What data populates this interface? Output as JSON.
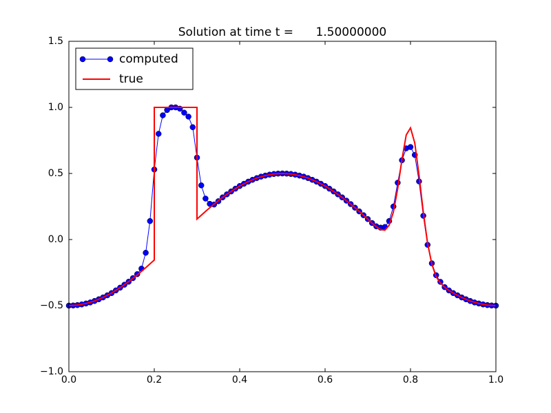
{
  "chart_data": {
    "type": "line",
    "title": "Solution at time t =      1.50000000",
    "xlim": [
      0,
      1
    ],
    "ylim": [
      -1,
      1.5
    ],
    "xticks": [
      {
        "value": 0,
        "label": "0.0"
      },
      {
        "value": 0.2,
        "label": "0.2"
      },
      {
        "value": 0.4,
        "label": "0.4"
      },
      {
        "value": 0.6,
        "label": "0.6"
      },
      {
        "value": 0.8,
        "label": "0.8"
      },
      {
        "value": 1,
        "label": "1.0"
      }
    ],
    "yticks": [
      {
        "value": -1,
        "label": "−1.0"
      },
      {
        "value": -0.5,
        "label": "−0.5"
      },
      {
        "value": 0,
        "label": "0.0"
      },
      {
        "value": 0.5,
        "label": "0.5"
      },
      {
        "value": 1,
        "label": "1.0"
      },
      {
        "value": 1.5,
        "label": "1.5"
      }
    ],
    "legend": "upper left",
    "series": [
      {
        "name": "computed",
        "color": "#0000ff",
        "marker": "o",
        "x": [
          0,
          0.01,
          0.02,
          0.03,
          0.04,
          0.05,
          0.06,
          0.07,
          0.08,
          0.09,
          0.1,
          0.11,
          0.12,
          0.13,
          0.14,
          0.15,
          0.16,
          0.17,
          0.18,
          0.19,
          0.2,
          0.21,
          0.22,
          0.23,
          0.24,
          0.25,
          0.26,
          0.27,
          0.28,
          0.29,
          0.3,
          0.31,
          0.32,
          0.33,
          0.34,
          0.35,
          0.36,
          0.37,
          0.38,
          0.39,
          0.4,
          0.41,
          0.42,
          0.43,
          0.44,
          0.45,
          0.46,
          0.47,
          0.48,
          0.49,
          0.5,
          0.51,
          0.52,
          0.53,
          0.54,
          0.55,
          0.56,
          0.57,
          0.58,
          0.59,
          0.6,
          0.61,
          0.62,
          0.63,
          0.64,
          0.65,
          0.66,
          0.67,
          0.68,
          0.69,
          0.7,
          0.71,
          0.72,
          0.73,
          0.74,
          0.75,
          0.76,
          0.77,
          0.78,
          0.79,
          0.8,
          0.81,
          0.82,
          0.83,
          0.84,
          0.85,
          0.86,
          0.87,
          0.88,
          0.89,
          0.9,
          0.91,
          0.92,
          0.93,
          0.94,
          0.95,
          0.96,
          0.97,
          0.98,
          0.99,
          1
        ],
        "values": [
          -0.5,
          -0.499,
          -0.496,
          -0.491,
          -0.484,
          -0.476,
          -0.465,
          -0.452,
          -0.438,
          -0.422,
          -0.405,
          -0.385,
          -0.364,
          -0.342,
          -0.319,
          -0.292,
          -0.262,
          -0.22,
          -0.1,
          0.14,
          0.53,
          0.8,
          0.94,
          0.98,
          1.0,
          1.0,
          0.99,
          0.96,
          0.93,
          0.85,
          0.62,
          0.41,
          0.31,
          0.27,
          0.265,
          0.29,
          0.319,
          0.342,
          0.364,
          0.385,
          0.405,
          0.422,
          0.438,
          0.452,
          0.465,
          0.476,
          0.484,
          0.491,
          0.496,
          0.499,
          0.5,
          0.499,
          0.496,
          0.491,
          0.484,
          0.476,
          0.465,
          0.452,
          0.438,
          0.422,
          0.405,
          0.385,
          0.364,
          0.342,
          0.319,
          0.294,
          0.268,
          0.241,
          0.213,
          0.184,
          0.155,
          0.125,
          0.1,
          0.09,
          0.095,
          0.14,
          0.25,
          0.43,
          0.6,
          0.69,
          0.7,
          0.64,
          0.44,
          0.18,
          -0.04,
          -0.18,
          -0.27,
          -0.32,
          -0.36,
          -0.385,
          -0.405,
          -0.422,
          -0.438,
          -0.452,
          -0.465,
          -0.476,
          -0.484,
          -0.491,
          -0.496,
          -0.499,
          -0.5
        ]
      },
      {
        "name": "true",
        "color": "#ff0000",
        "x": [
          0,
          0.02,
          0.04,
          0.06,
          0.08,
          0.1,
          0.12,
          0.14,
          0.16,
          0.18,
          0.2,
          0.2,
          0.3,
          0.3,
          0.32,
          0.34,
          0.36,
          0.38,
          0.4,
          0.42,
          0.44,
          0.46,
          0.48,
          0.5,
          0.52,
          0.54,
          0.56,
          0.58,
          0.6,
          0.62,
          0.64,
          0.66,
          0.68,
          0.7,
          0.71,
          0.72,
          0.73,
          0.74,
          0.75,
          0.76,
          0.77,
          0.78,
          0.79,
          0.8,
          0.81,
          0.82,
          0.83,
          0.84,
          0.85,
          0.86,
          0.87,
          0.88,
          0.89,
          0.9,
          0.92,
          0.94,
          0.96,
          0.98,
          1
        ],
        "values": [
          -0.5,
          -0.496,
          -0.484,
          -0.465,
          -0.438,
          -0.405,
          -0.364,
          -0.319,
          -0.268,
          -0.213,
          -0.155,
          1.0,
          1.0,
          0.155,
          0.213,
          0.268,
          0.319,
          0.364,
          0.405,
          0.438,
          0.465,
          0.484,
          0.496,
          0.5,
          0.496,
          0.484,
          0.465,
          0.438,
          0.405,
          0.364,
          0.319,
          0.268,
          0.213,
          0.155,
          0.124,
          0.097,
          0.076,
          0.071,
          0.108,
          0.209,
          0.385,
          0.606,
          0.791,
          0.845,
          0.731,
          0.487,
          0.207,
          -0.028,
          -0.186,
          -0.28,
          -0.329,
          -0.361,
          -0.385,
          -0.405,
          -0.438,
          -0.465,
          -0.484,
          -0.496,
          -0.5
        ]
      }
    ]
  }
}
